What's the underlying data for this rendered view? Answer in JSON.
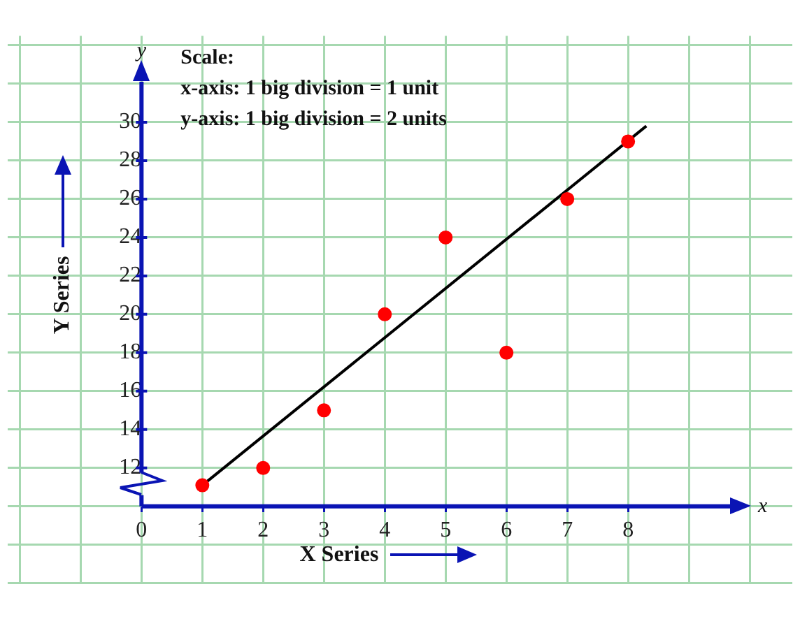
{
  "chart_data": {
    "type": "scatter",
    "xlabel": "X Series",
    "ylabel": "Y Series",
    "annotations": [
      "Scale:",
      "x-axis: 1 big division = 1 unit",
      "y-axis: 1 big division = 2 units",
      "x",
      "y"
    ],
    "x": [
      1,
      2,
      3,
      4,
      5,
      6,
      7,
      8
    ],
    "series": [
      {
        "color": "#ff0000",
        "values": [
          11.1,
          12,
          15,
          20,
          24,
          18,
          26,
          29
        ],
        "marker": "circle"
      },
      {
        "type": "line",
        "color": "#000000",
        "x": [
          1,
          8.3
        ],
        "values": [
          11.1,
          29.8
        ],
        "marker": "none",
        "line_style": "solid"
      }
    ],
    "xlim": [
      -2.2,
      10.7
    ],
    "ylim": [
      6,
      34.5
    ],
    "xticks": [
      {
        "value": -2,
        "label": null
      },
      {
        "value": -1,
        "label": null
      },
      0,
      1,
      2,
      3,
      4,
      5,
      6,
      7,
      8,
      {
        "value": 9,
        "label": null
      },
      {
        "value": 10,
        "label": null
      }
    ],
    "yticks": [
      {
        "value": 6,
        "label": null
      },
      {
        "value": 8,
        "label": null
      },
      {
        "value": 10,
        "label": null
      },
      12,
      14,
      16,
      18,
      20,
      22,
      24,
      26,
      28,
      30,
      {
        "value": 32,
        "label": null
      },
      {
        "value": 34,
        "label": null
      }
    ],
    "grid": true,
    "legend": false
  }
}
